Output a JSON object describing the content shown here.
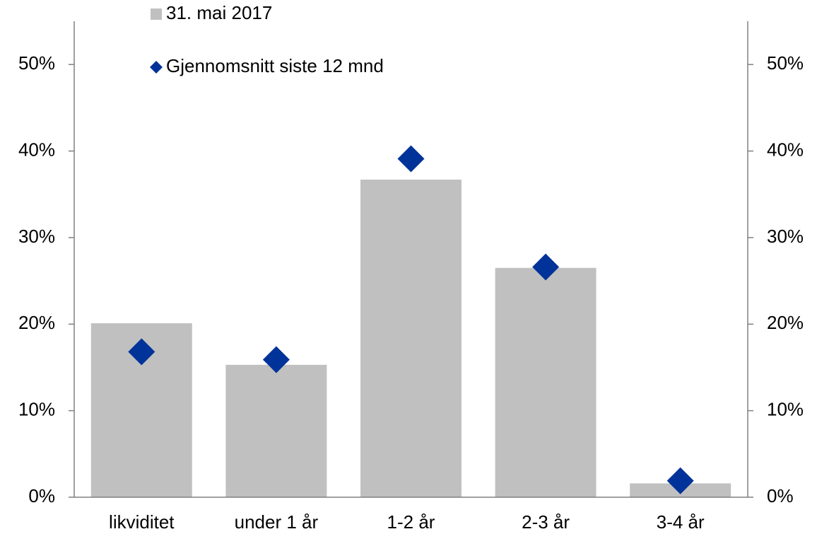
{
  "chart_data": {
    "type": "bar",
    "categories": [
      "likviditet",
      "under 1 år",
      "1-2 år",
      "2-3 år",
      "3-4 år"
    ],
    "series": [
      {
        "name": "31. mai 2017",
        "type": "bar",
        "color": "#c0c0c0",
        "values": [
          20.1,
          15.3,
          36.7,
          26.5,
          1.6
        ]
      },
      {
        "name": "Gjennomsnitt siste 12 mnd",
        "type": "scatter",
        "marker": "diamond",
        "color": "#003399",
        "values": [
          16.8,
          15.9,
          39.1,
          26.6,
          1.9
        ]
      }
    ],
    "ylim": [
      0,
      55
    ],
    "yticks": [
      {
        "value": 0,
        "label": "0%"
      },
      {
        "value": 10,
        "label": "10%"
      },
      {
        "value": 20,
        "label": "20%"
      },
      {
        "value": 30,
        "label": "30%"
      },
      {
        "value": 40,
        "label": "40%"
      },
      {
        "value": 50,
        "label": "50%"
      }
    ],
    "y2lim": [
      0,
      55
    ],
    "y2ticks": [
      {
        "value": 0,
        "label": "0%"
      },
      {
        "value": 10,
        "label": "10%"
      },
      {
        "value": 20,
        "label": "20%"
      },
      {
        "value": 30,
        "label": "30%"
      },
      {
        "value": 40,
        "label": "40%"
      },
      {
        "value": 50,
        "label": "50%"
      }
    ],
    "grid": false,
    "legend": "top-left"
  }
}
